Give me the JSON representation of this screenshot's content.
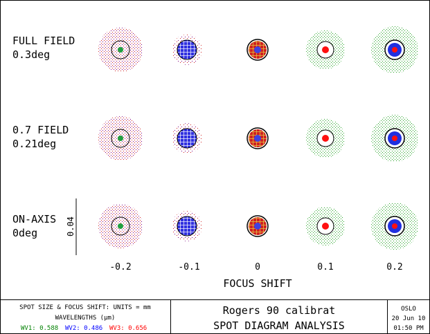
{
  "rows": [
    {
      "label1": "FULL FIELD",
      "label2": "0.3deg"
    },
    {
      "label1": "0.7 FIELD",
      "label2": "0.21deg"
    },
    {
      "label1": "ON-AXIS",
      "label2": "0deg"
    }
  ],
  "scale_bar_label": "0.04",
  "focus_shifts": [
    "-0.2",
    "-0.1",
    "0",
    "0.1",
    "0.2"
  ],
  "x_axis_title": "FOCUS SHIFT",
  "footer": {
    "units_line": "SPOT SIZE & FOCUS SHIFT: UNITS = mm",
    "wavelengths_line": "WAVELENGTHS (µm)",
    "wv1": "WV1: 0.588",
    "wv2": "WV2: 0.486",
    "wv3": "WV3: 0.656",
    "lens_name": "Rogers 90 calibrat",
    "analysis_title": "SPOT DIAGRAM ANALYSIS",
    "program": "OSLO",
    "date": "20 Jun 10",
    "time": "01:50 PM"
  },
  "colors": {
    "wv1": "#008000",
    "wv2": "#0000ff",
    "wv3": "#ff0000",
    "spread": "#800080"
  }
}
